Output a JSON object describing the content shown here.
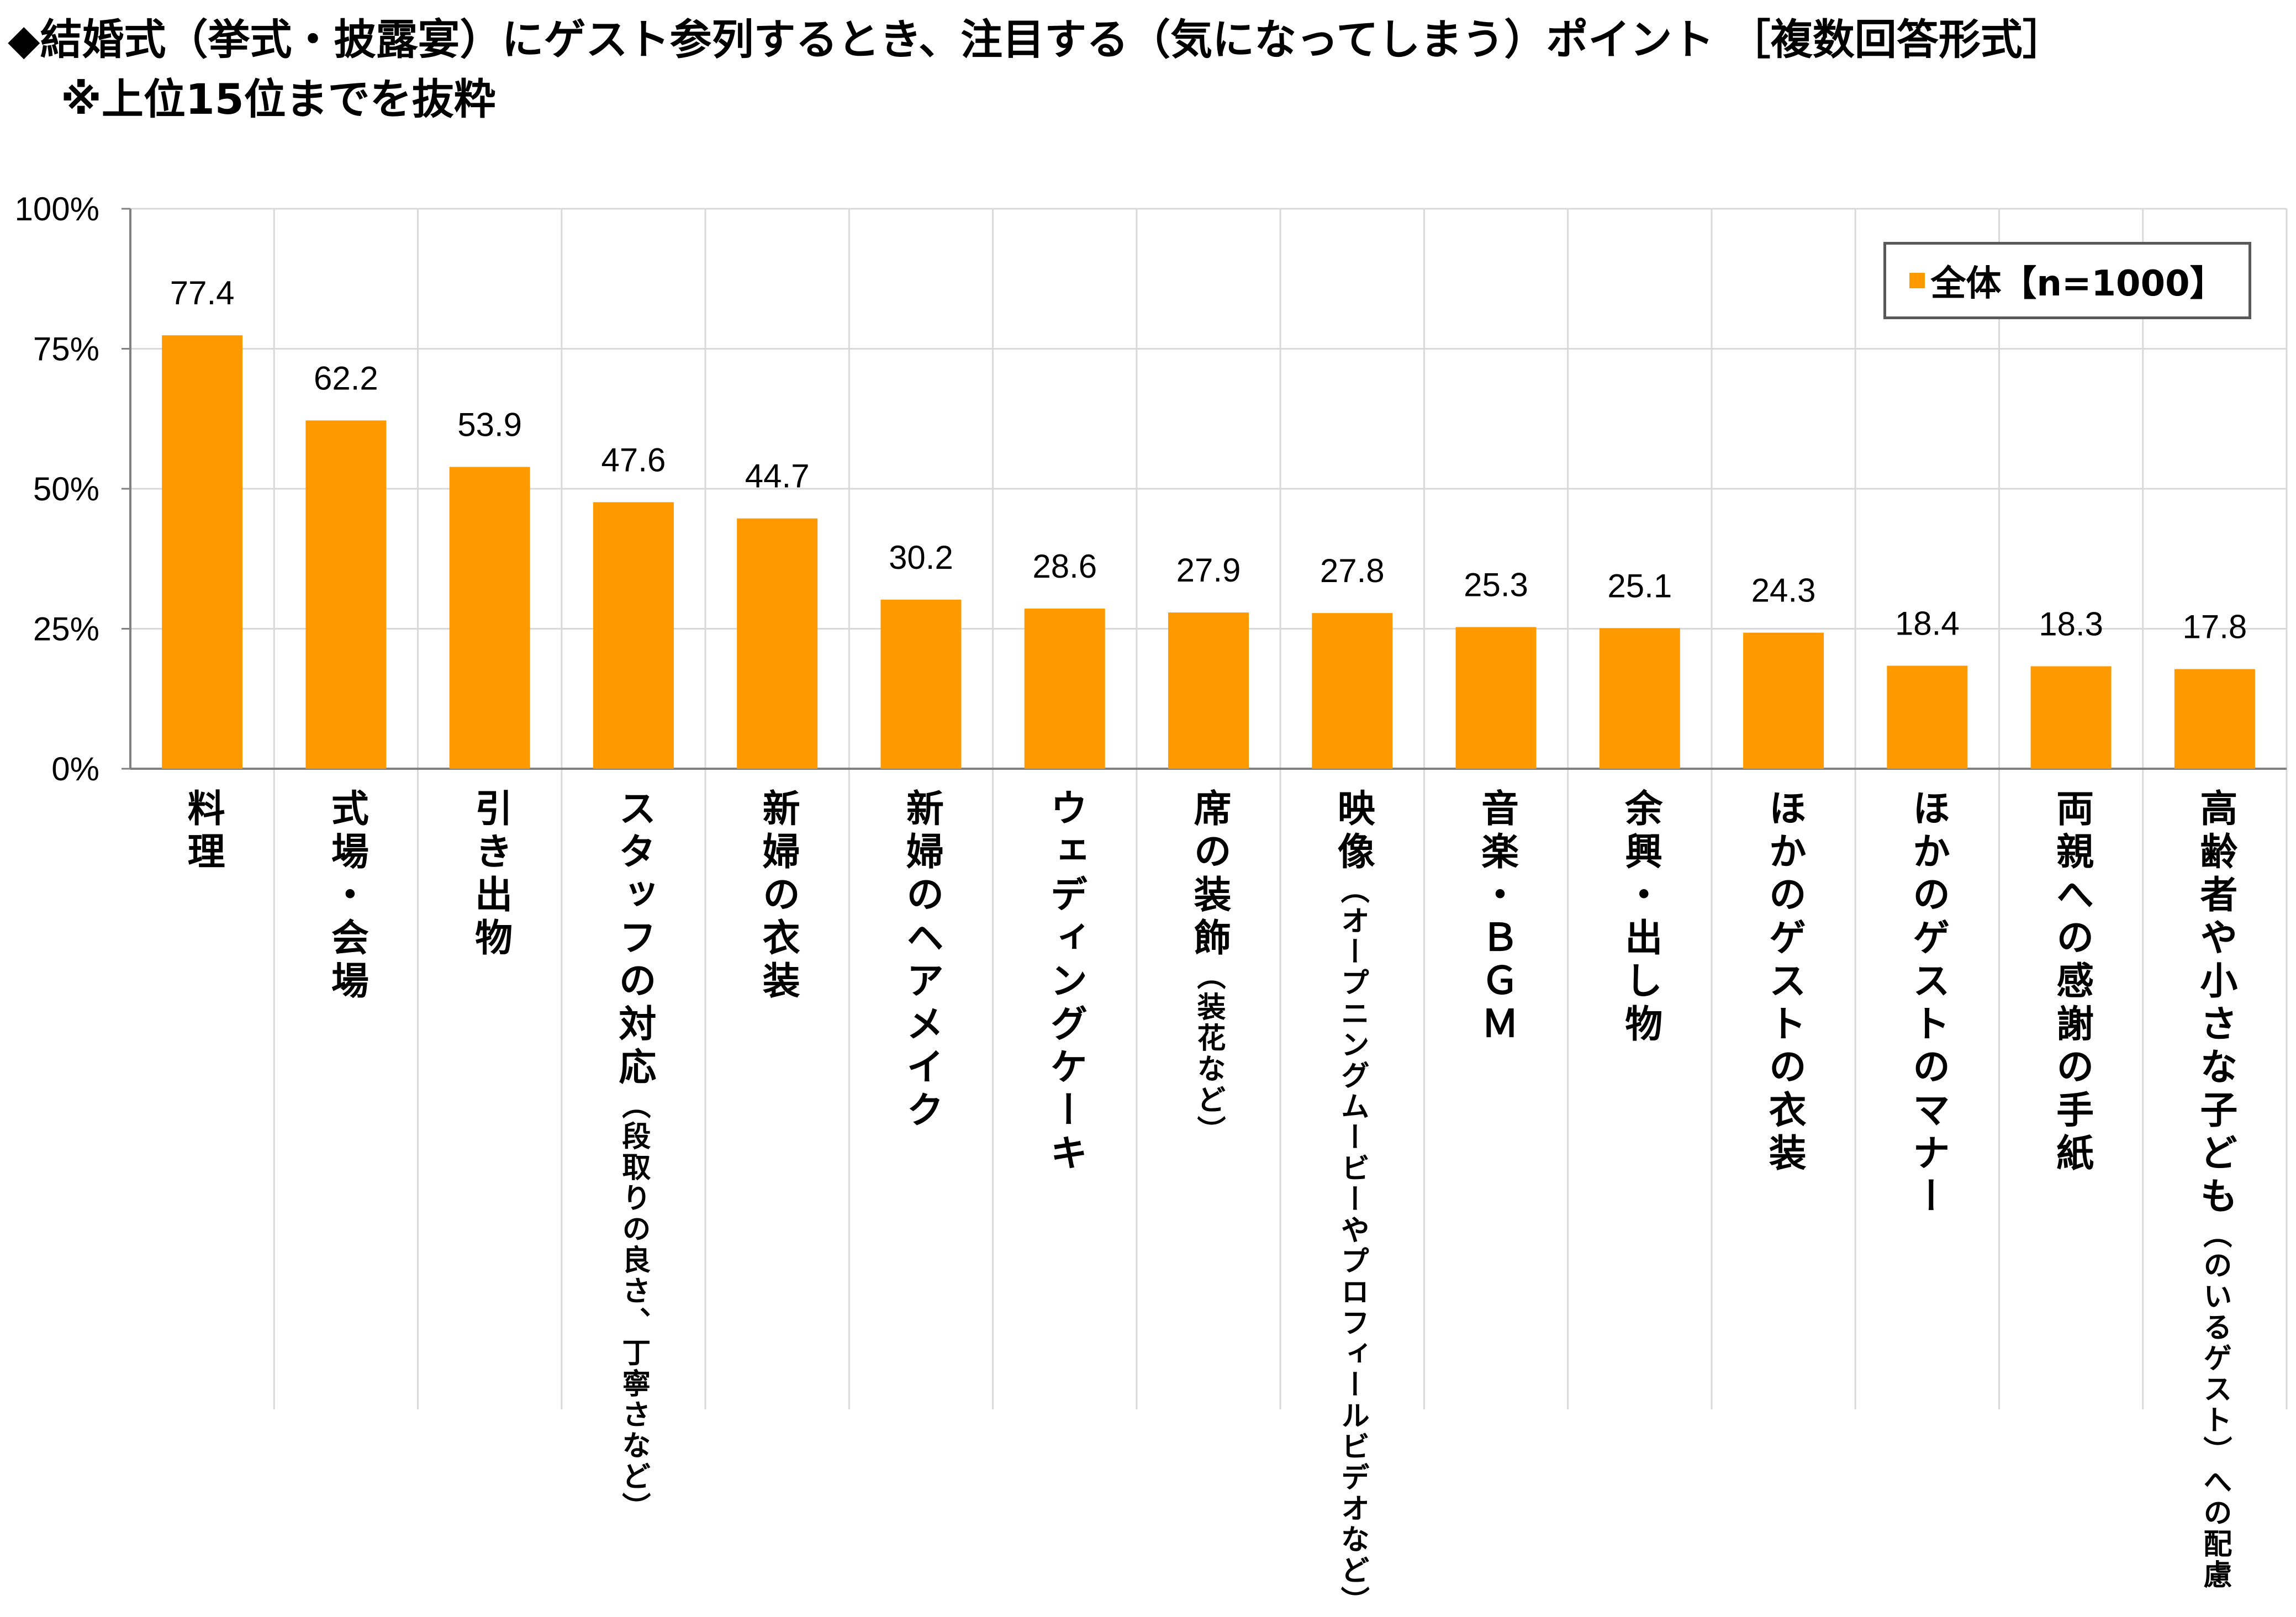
{
  "title": {
    "line1": "◆結婚式（挙式・披露宴）にゲスト参列するとき、注目する（気になってしまう）ポイント ［複数回答形式］",
    "line2": "※上位15位までを抜粋"
  },
  "colors": {
    "bar": "#ff9900",
    "grid": "#d9d9d9",
    "axis": "#808080"
  },
  "chart_data": {
    "type": "bar",
    "categories": [
      {
        "main": "料理",
        "sub": ""
      },
      {
        "main": "式場・会場",
        "sub": ""
      },
      {
        "main": "引き出物",
        "sub": ""
      },
      {
        "main": "スタッフの対応",
        "sub": "（段取りの良さ、丁寧さなど）"
      },
      {
        "main": "新婦の衣装",
        "sub": ""
      },
      {
        "main": "新婦のヘアメイク",
        "sub": ""
      },
      {
        "main": "ウェディングケーキ",
        "sub": ""
      },
      {
        "main": "席の装飾",
        "sub": "（装花など）"
      },
      {
        "main": "映像",
        "sub": "（オープニングムービーやプロフィールビデオなど）"
      },
      {
        "main": "音楽・ＢＧＭ",
        "sub": ""
      },
      {
        "main": "余興・出し物",
        "sub": ""
      },
      {
        "main": "ほかのゲストの衣装",
        "sub": ""
      },
      {
        "main": "ほかのゲストのマナー",
        "sub": ""
      },
      {
        "main": "両親への感謝の手紙",
        "sub": ""
      },
      {
        "main": "高齢者や小さな子ども",
        "sub": "（のいるゲスト）への配慮"
      }
    ],
    "series": [
      {
        "name": "全体【n=1000】",
        "values": [
          77.4,
          62.2,
          53.9,
          47.6,
          44.7,
          30.2,
          28.6,
          27.9,
          27.8,
          25.3,
          25.1,
          24.3,
          18.4,
          18.3,
          17.8
        ]
      }
    ],
    "value_labels": [
      "77.4",
      "62.2",
      "53.9",
      "47.6",
      "44.7",
      "30.2",
      "28.6",
      "27.9",
      "27.8",
      "25.3",
      "25.1",
      "24.3",
      "18.4",
      "18.3",
      "17.8"
    ],
    "ylim": [
      0,
      100
    ],
    "yticks": [
      0,
      25,
      50,
      75,
      100
    ],
    "ytick_labels": [
      "0%",
      "25%",
      "50%",
      "75%",
      "100%"
    ],
    "grid": true,
    "legend_position": "top-right"
  }
}
